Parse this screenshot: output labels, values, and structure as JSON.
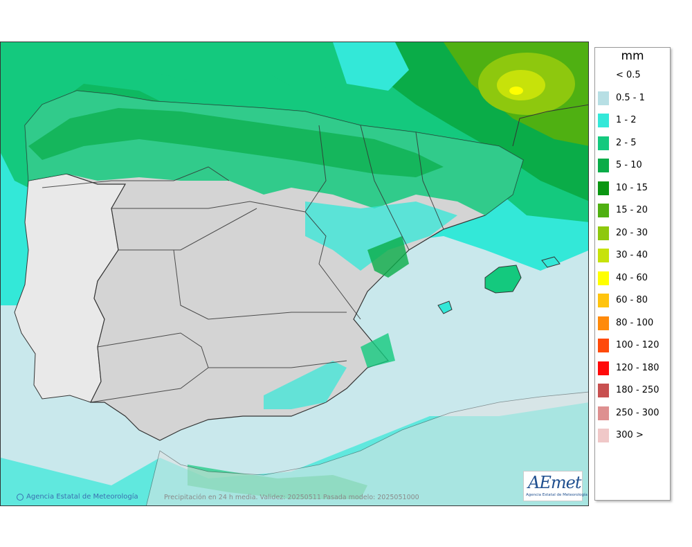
{
  "legend": {
    "unit": "mm",
    "items": [
      {
        "label": "< 0.5",
        "color": "#ffffff"
      },
      {
        "label": "0.5 - 1",
        "color": "#b7dfe4"
      },
      {
        "label": "1 - 2",
        "color": "#33e8d8"
      },
      {
        "label": "2 - 5",
        "color": "#14c97e"
      },
      {
        "label": "5 - 10",
        "color": "#0aac48"
      },
      {
        "label": "10 - 15",
        "color": "#0a9612"
      },
      {
        "label": "15 - 20",
        "color": "#4fb012"
      },
      {
        "label": "20 - 30",
        "color": "#8ec80e"
      },
      {
        "label": "30 - 40",
        "color": "#c7e20a"
      },
      {
        "label": "40 - 60",
        "color": "#ffff00"
      },
      {
        "label": "60 - 80",
        "color": "#ffc40e"
      },
      {
        "label": "80 - 100",
        "color": "#ff8a0a"
      },
      {
        "label": "100 - 120",
        "color": "#ff4a0a"
      },
      {
        "label": "120 - 180",
        "color": "#ff0a0a"
      },
      {
        "label": "180 - 250",
        "color": "#c85050"
      },
      {
        "label": "250 - 300",
        "color": "#de9090"
      },
      {
        "label": "300 >",
        "color": "#f0c8c8"
      }
    ]
  },
  "credit": "Agencia Estatal de Meteorología",
  "footer": "Precipitación en 24 h media. Validez: 20250511 Pasada modelo: 2025051000",
  "logo": {
    "text": "AEmet",
    "subtitle": "Agencia Estatal de Meteorología"
  },
  "colors": {
    "sea_base": "#c9e8ec",
    "land_dry": "#d4d4d4",
    "borders": "#333333"
  }
}
